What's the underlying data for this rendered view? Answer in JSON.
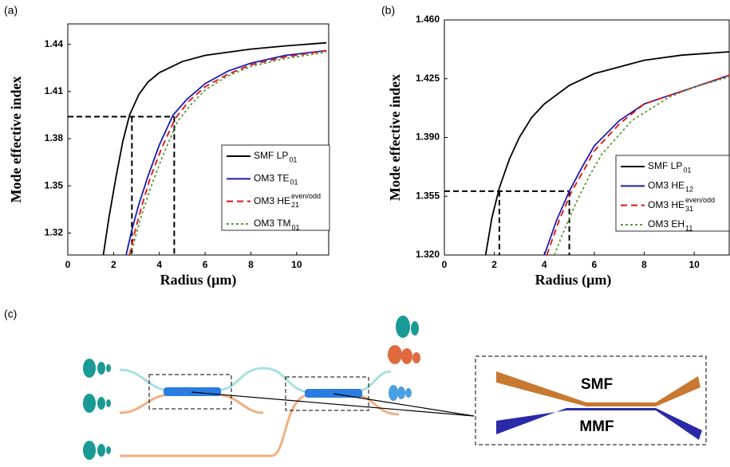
{
  "panel_labels": [
    "(a)",
    "(b)",
    "(c)"
  ],
  "chart_data": [
    {
      "type": "line",
      "xlabel": "Radius (μm)",
      "ylabel": "Mode effective index",
      "xlim": [
        0,
        11.4
      ],
      "ylim": [
        1.306,
        1.453
      ],
      "xticks": [
        0,
        2,
        4,
        6,
        8,
        10
      ],
      "yticks": [
        1.32,
        1.35,
        1.38,
        1.41,
        1.44
      ],
      "guides": {
        "y": 1.394,
        "x": [
          2.8,
          4.65
        ]
      },
      "series": [
        {
          "name": "SMF   LP",
          "sub": "01",
          "color": "#000000",
          "dash": "solid",
          "x": [
            1.55,
            1.8,
            2.1,
            2.4,
            2.7,
            3.1,
            3.5,
            4.0,
            5.0,
            6.0,
            7.0,
            8.0,
            9.5,
            11.3
          ],
          "values": [
            1.306,
            1.33,
            1.355,
            1.378,
            1.395,
            1.408,
            1.416,
            1.422,
            1.429,
            1.433,
            1.435,
            1.437,
            1.439,
            1.441
          ]
        },
        {
          "name": "OM3  TE",
          "sub": "01",
          "color": "#1c1cb0",
          "dash": "solid",
          "x": [
            2.55,
            2.8,
            3.1,
            3.5,
            4.0,
            4.6,
            5.2,
            6.0,
            7.0,
            8.0,
            9.5,
            11.3
          ],
          "values": [
            1.306,
            1.322,
            1.338,
            1.356,
            1.376,
            1.395,
            1.405,
            1.415,
            1.423,
            1.428,
            1.433,
            1.436
          ]
        },
        {
          "name": "OM3  HE",
          "sub": "21",
          "sup": "even/odd",
          "color": "#e01010",
          "dash": "8,5",
          "x": [
            2.7,
            2.95,
            3.25,
            3.6,
            4.1,
            4.7,
            5.3,
            6.0,
            7.0,
            8.0,
            9.5,
            11.3
          ],
          "values": [
            1.306,
            1.322,
            1.338,
            1.355,
            1.374,
            1.393,
            1.404,
            1.413,
            1.421,
            1.427,
            1.432,
            1.436
          ]
        },
        {
          "name": "OM3  TM",
          "sub": "01",
          "color": "#5a9a3a",
          "dash": "3,3",
          "x": [
            2.75,
            3.0,
            3.3,
            3.7,
            4.2,
            4.8,
            5.4,
            6.0,
            7.0,
            8.0,
            9.5,
            11.3
          ],
          "values": [
            1.306,
            1.32,
            1.335,
            1.352,
            1.371,
            1.391,
            1.402,
            1.411,
            1.42,
            1.426,
            1.431,
            1.435
          ]
        }
      ]
    },
    {
      "type": "line",
      "xlabel": "Radius (μm)",
      "ylabel": "Mode effective index",
      "xlim": [
        0,
        11.4
      ],
      "ylim": [
        1.32,
        1.46
      ],
      "xticks": [
        0,
        2,
        4,
        6,
        8,
        10
      ],
      "yticks": [
        {
          "value": 1.32,
          "label": "1.320"
        },
        {
          "value": 1.355,
          "label": "1.355"
        },
        {
          "value": 1.39,
          "label": "1.390"
        },
        {
          "value": 1.425,
          "label": "1.425"
        },
        {
          "value": 1.46,
          "label": "1.460"
        }
      ],
      "guides": {
        "y": 1.358,
        "x": [
          2.2,
          5.0
        ]
      },
      "series": [
        {
          "name": "SMF  LP",
          "sub": "01",
          "color": "#000000",
          "dash": "solid",
          "x": [
            1.65,
            1.9,
            2.2,
            2.6,
            3.0,
            3.5,
            4.0,
            5.0,
            6.0,
            7.0,
            8.0,
            9.5,
            11.4
          ],
          "values": [
            1.32,
            1.342,
            1.36,
            1.377,
            1.39,
            1.402,
            1.41,
            1.421,
            1.428,
            1.432,
            1.436,
            1.439,
            1.441
          ]
        },
        {
          "name": "OM3  HE",
          "sub": "12",
          "color": "#1c1cb0",
          "dash": "solid",
          "x": [
            4.0,
            4.5,
            5.0,
            5.5,
            6.0,
            7.0,
            8.0,
            9.0,
            10.0,
            11.4
          ],
          "values": [
            1.32,
            1.341,
            1.358,
            1.372,
            1.385,
            1.4,
            1.41,
            1.415,
            1.42,
            1.427
          ]
        },
        {
          "name": "OM3  HE",
          "sub": "31",
          "sup": "even/odd",
          "color": "#e01010",
          "dash": "8,5",
          "x": [
            4.1,
            4.6,
            5.1,
            5.6,
            6.0,
            7.0,
            8.0,
            9.0,
            10.0,
            11.4
          ],
          "values": [
            1.32,
            1.341,
            1.358,
            1.371,
            1.382,
            1.398,
            1.41,
            1.415,
            1.42,
            1.427
          ]
        },
        {
          "name": "OM3  EH",
          "sub": "11",
          "color": "#5a9a3a",
          "dash": "3,3",
          "x": [
            4.4,
            4.8,
            5.3,
            5.8,
            6.3,
            7.5,
            9.0,
            10.0,
            11.4
          ],
          "values": [
            1.32,
            1.335,
            1.352,
            1.367,
            1.38,
            1.4,
            1.414,
            1.42,
            1.426
          ]
        }
      ]
    }
  ],
  "diagram": {
    "labels": [
      "SMF",
      "MMF"
    ]
  }
}
